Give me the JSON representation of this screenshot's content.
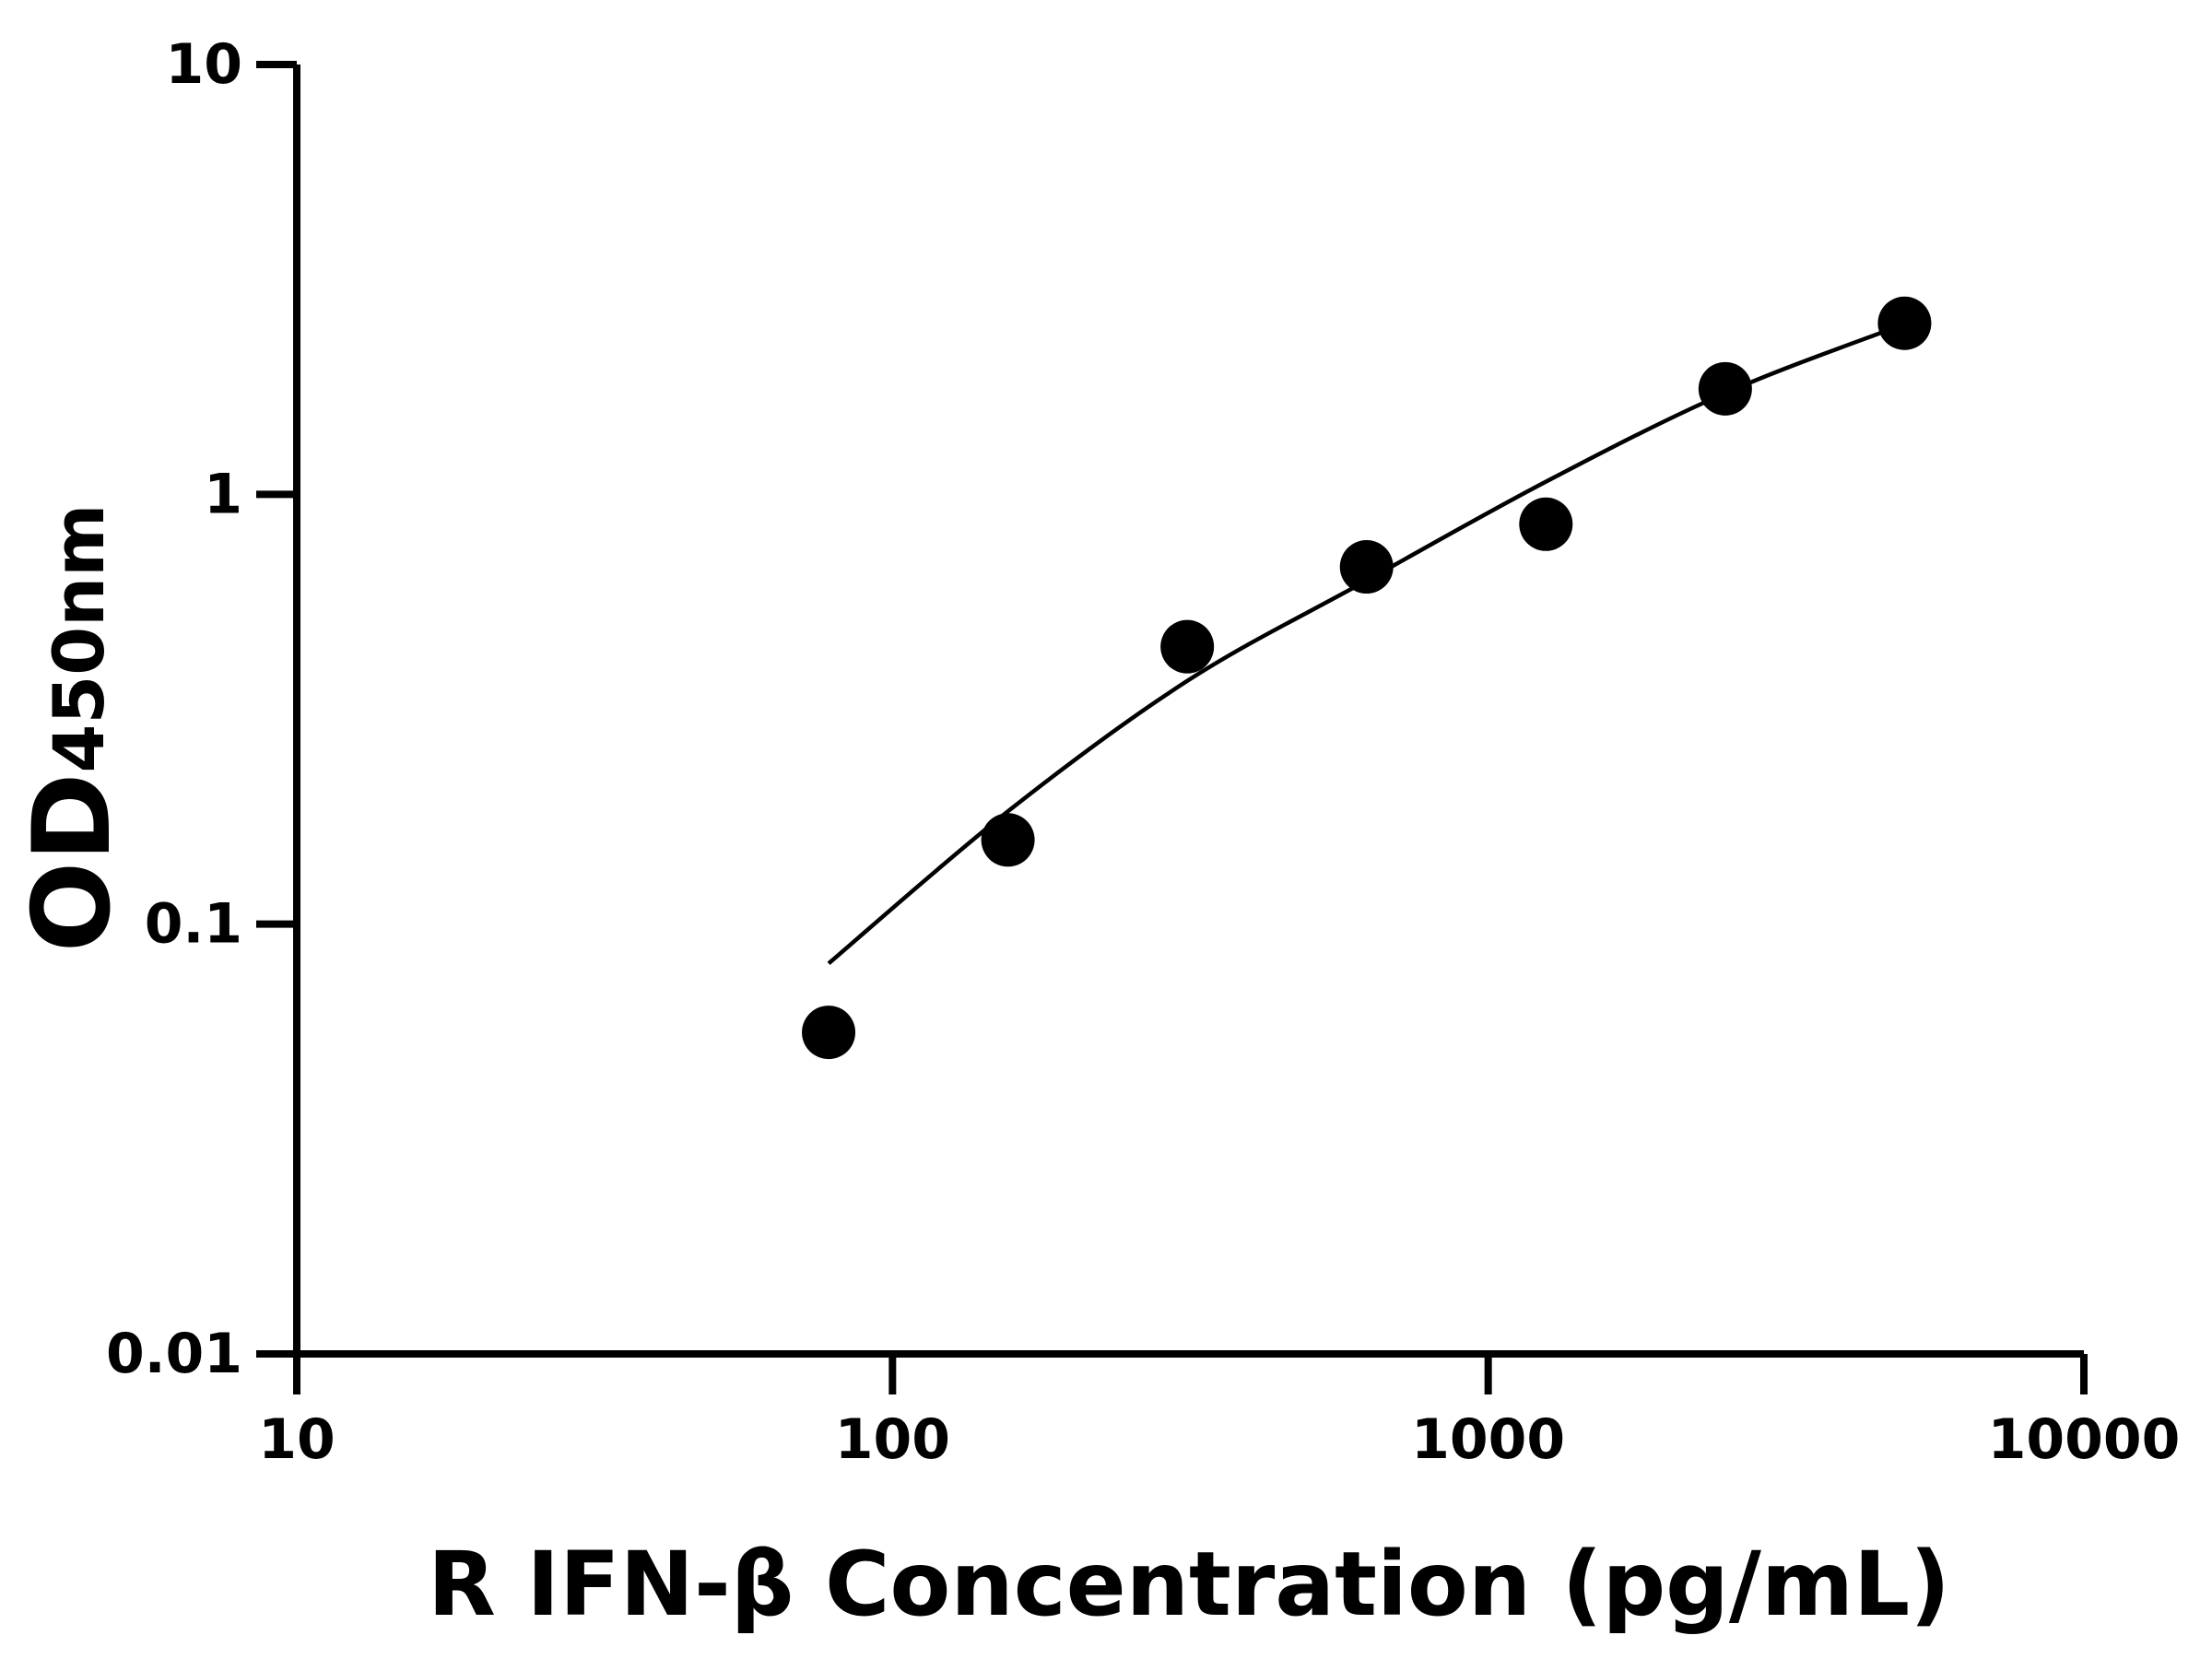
{
  "chart_data": {
    "type": "scatter",
    "title": "",
    "xlabel": "R IFN-β Concentration (pg/mL)",
    "ylabel": {
      "main": "OD",
      "subscript": "450nm"
    },
    "xscale": "log",
    "yscale": "log",
    "xlim": [
      10,
      10000
    ],
    "ylim": [
      0.01,
      10
    ],
    "xticks": [
      "10",
      "100",
      "1000",
      "10000"
    ],
    "yticks": [
      "0.01",
      "0.1",
      "1",
      "10"
    ],
    "grid": false,
    "legend": "none",
    "colors": {
      "points": "#000000",
      "curve": "#000000",
      "axes": "#000000"
    },
    "series": [
      {
        "x": [
          78.125,
          156.25,
          312.5,
          625,
          1250,
          2500,
          5000
        ],
        "y": [
          0.056,
          0.157,
          0.442,
          0.678,
          0.852,
          1.76,
          2.5
        ]
      }
    ],
    "fit_curve": {
      "x": [
        78.125,
        156.25,
        312.5,
        625,
        1250,
        2500,
        5000
      ],
      "y": [
        0.081,
        0.183,
        0.368,
        0.63,
        1.07,
        1.72,
        2.49
      ]
    }
  }
}
